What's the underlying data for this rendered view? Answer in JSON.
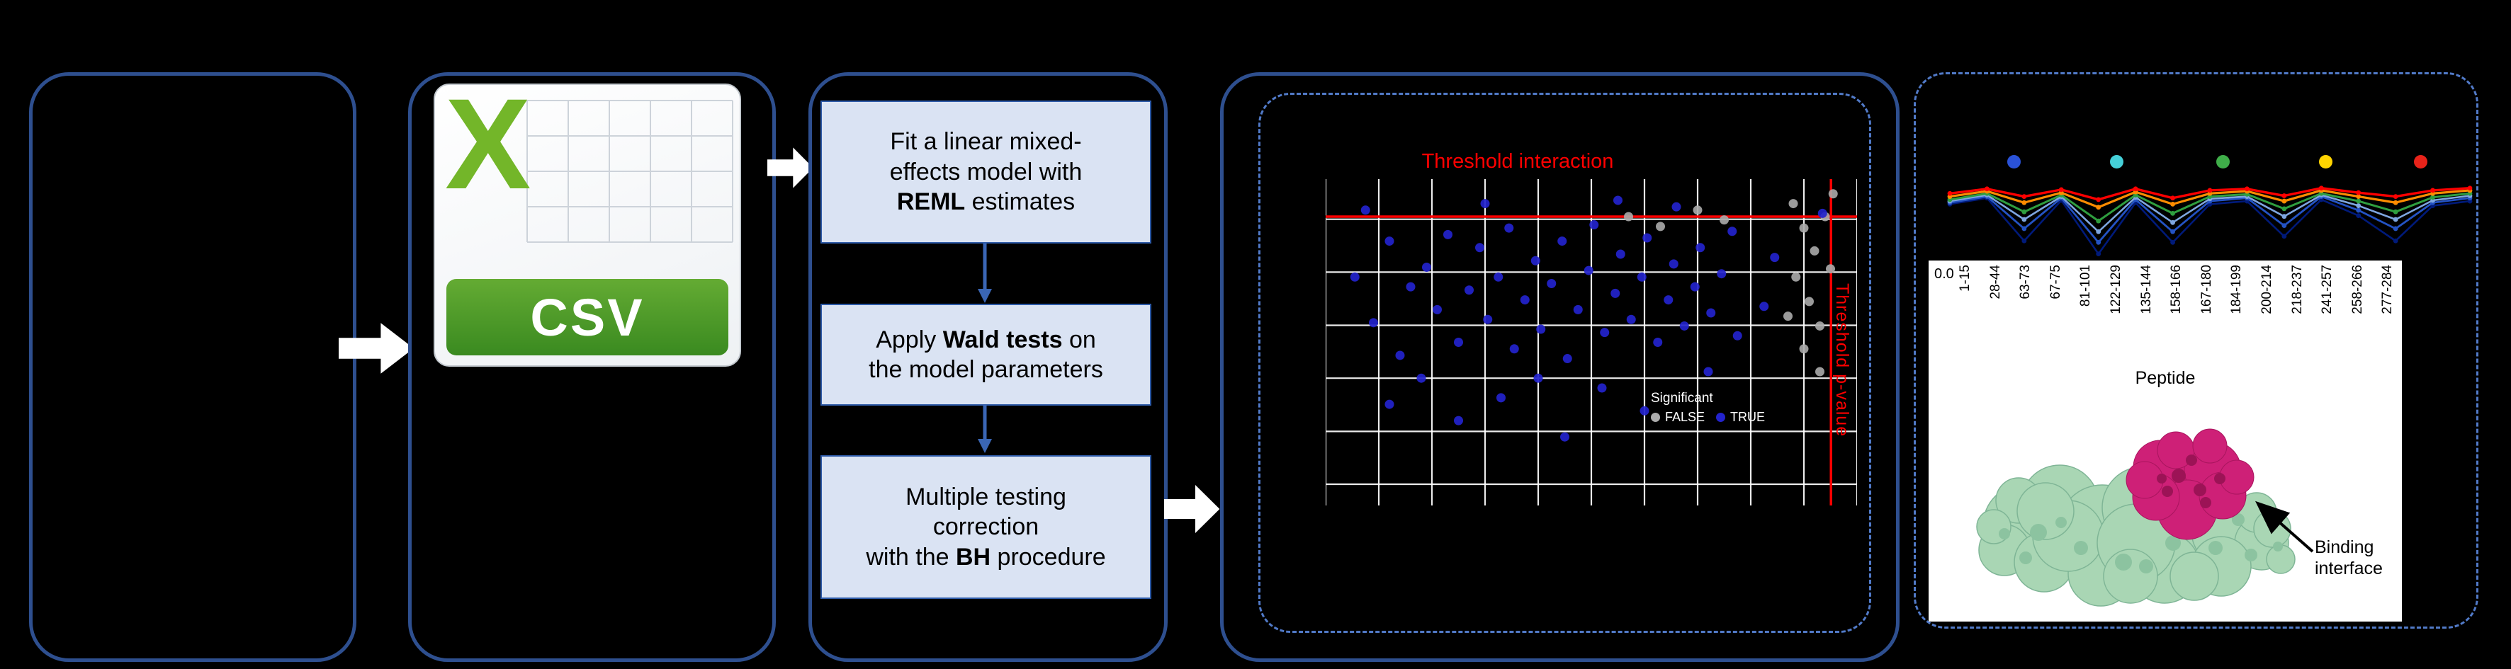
{
  "colors": {
    "background": "#000000",
    "box_border": "#2e4f8f",
    "dashed_border": "#517ac8",
    "step_fill": "#dae3f3",
    "step_border": "#2e5ba8",
    "flow_arrow": "#ffffff",
    "down_arrow": "#3a66b5",
    "threshold_red": "#ff0000",
    "csv_green": "#73b629",
    "csv_band_green": "#3a8a20",
    "protein_green": "#a9d6b4",
    "protein_magenta": "#ce2077"
  },
  "csv": {
    "logo_letter": "X",
    "file_type": "CSV"
  },
  "steps": [
    {
      "pre": "Fit a linear mixed-\neffects model with\n",
      "bold": "REML",
      "post": " estimates"
    },
    {
      "pre": "Apply ",
      "bold": "Wald tests",
      "post": " on\nthe model parameters"
    },
    {
      "pre": "Multiple testing\ncorrection\nwith the ",
      "bold": "BH",
      "post": " procedure"
    }
  ],
  "chart_data": [
    {
      "type": "scatter",
      "title": "Threshold interaction",
      "y_axis_label": "Threshold p-value",
      "legend": {
        "title": "Significant",
        "items": [
          {
            "label": "FALSE",
            "color": "#ababab"
          },
          {
            "label": "TRUE",
            "color": "#2323cd"
          }
        ]
      },
      "threshold_h": 0.115,
      "threshold_v": 0.951,
      "grid_v": [
        0,
        0.1,
        0.2,
        0.3,
        0.4,
        0.5,
        0.6,
        0.7,
        0.8,
        0.9,
        1.0
      ],
      "grid_h": [
        0.123,
        0.285,
        0.448,
        0.61,
        0.773,
        0.935
      ],
      "colors": {
        "blue": "#2323cd",
        "gray": "#ababab",
        "threshold": "#ff0000",
        "grid": "#ffffff"
      },
      "points": {
        "blue": [
          [
            0.055,
            0.3
          ],
          [
            0.09,
            0.44
          ],
          [
            0.12,
            0.19
          ],
          [
            0.14,
            0.54
          ],
          [
            0.16,
            0.33
          ],
          [
            0.19,
            0.27
          ],
          [
            0.21,
            0.4
          ],
          [
            0.23,
            0.17
          ],
          [
            0.25,
            0.5
          ],
          [
            0.27,
            0.34
          ],
          [
            0.29,
            0.21
          ],
          [
            0.305,
            0.43
          ],
          [
            0.325,
            0.3
          ],
          [
            0.345,
            0.15
          ],
          [
            0.355,
            0.52
          ],
          [
            0.375,
            0.37
          ],
          [
            0.395,
            0.25
          ],
          [
            0.405,
            0.46
          ],
          [
            0.425,
            0.32
          ],
          [
            0.445,
            0.19
          ],
          [
            0.455,
            0.55
          ],
          [
            0.475,
            0.4
          ],
          [
            0.495,
            0.28
          ],
          [
            0.505,
            0.14
          ],
          [
            0.525,
            0.47
          ],
          [
            0.545,
            0.35
          ],
          [
            0.555,
            0.23
          ],
          [
            0.575,
            0.43
          ],
          [
            0.595,
            0.3
          ],
          [
            0.605,
            0.18
          ],
          [
            0.625,
            0.5
          ],
          [
            0.645,
            0.37
          ],
          [
            0.655,
            0.26
          ],
          [
            0.675,
            0.45
          ],
          [
            0.695,
            0.33
          ],
          [
            0.705,
            0.21
          ],
          [
            0.725,
            0.41
          ],
          [
            0.745,
            0.29
          ],
          [
            0.765,
            0.16
          ],
          [
            0.775,
            0.48
          ],
          [
            0.25,
            0.74
          ],
          [
            0.33,
            0.67
          ],
          [
            0.45,
            0.79
          ],
          [
            0.12,
            0.69
          ],
          [
            0.52,
            0.64
          ],
          [
            0.6,
            0.71
          ],
          [
            0.075,
            0.095
          ],
          [
            0.3,
            0.075
          ],
          [
            0.55,
            0.065
          ],
          [
            0.66,
            0.085
          ],
          [
            0.72,
            0.59
          ],
          [
            0.18,
            0.61
          ],
          [
            0.4,
            0.61
          ],
          [
            0.845,
            0.24
          ],
          [
            0.825,
            0.39
          ],
          [
            0.935,
            0.105
          ]
        ],
        "gray": [
          [
            0.88,
            0.075
          ],
          [
            0.9,
            0.15
          ],
          [
            0.92,
            0.22
          ],
          [
            0.885,
            0.3
          ],
          [
            0.91,
            0.375
          ],
          [
            0.93,
            0.45
          ],
          [
            0.9,
            0.52
          ],
          [
            0.94,
            0.115
          ],
          [
            0.95,
            0.275
          ],
          [
            0.87,
            0.42
          ],
          [
            0.57,
            0.115
          ],
          [
            0.63,
            0.145
          ],
          [
            0.7,
            0.095
          ],
          [
            0.75,
            0.125
          ],
          [
            0.93,
            0.59
          ],
          [
            0.955,
            0.045
          ]
        ]
      }
    },
    {
      "type": "line",
      "y_tick": "0.0",
      "x_label": "Peptide",
      "x_ticks": [
        "1-15",
        "28-44",
        "63-73",
        "67-75",
        "81-101",
        "122-129",
        "135-144",
        "158-166",
        "167-180",
        "184-199",
        "200-214",
        "218-237",
        "241-257",
        "258-266",
        "277-284"
      ],
      "top_dots": [
        {
          "x": 0.13,
          "color": "#2a52d8"
        },
        {
          "x": 0.325,
          "color": "#45d0d8"
        },
        {
          "x": 0.525,
          "color": "#3fae49"
        },
        {
          "x": 0.72,
          "color": "#ffd400"
        },
        {
          "x": 0.9,
          "color": "#e8231a"
        }
      ],
      "series": [
        {
          "color": "#001a7a",
          "width": 2.6,
          "values": [
            0.3,
            0.22,
            0.78,
            0.25,
            0.95,
            0.28,
            0.8,
            0.3,
            0.26,
            0.72,
            0.24,
            0.45,
            0.78,
            0.32,
            0.26
          ]
        },
        {
          "color": "#2453c4",
          "width": 2.8,
          "values": [
            0.28,
            0.2,
            0.62,
            0.22,
            0.8,
            0.24,
            0.66,
            0.26,
            0.22,
            0.58,
            0.2,
            0.38,
            0.62,
            0.28,
            0.22
          ]
        },
        {
          "color": "#7ea6e0",
          "width": 2.6,
          "values": [
            0.26,
            0.18,
            0.5,
            0.2,
            0.66,
            0.21,
            0.54,
            0.23,
            0.2,
            0.46,
            0.18,
            0.32,
            0.5,
            0.25,
            0.19
          ]
        },
        {
          "color": "#2f9e3f",
          "width": 3.0,
          "values": [
            0.24,
            0.16,
            0.4,
            0.18,
            0.52,
            0.18,
            0.42,
            0.2,
            0.17,
            0.36,
            0.16,
            0.26,
            0.4,
            0.21,
            0.16
          ]
        },
        {
          "color": "#ff8c00",
          "width": 3.2,
          "values": [
            0.2,
            0.13,
            0.28,
            0.15,
            0.34,
            0.14,
            0.3,
            0.16,
            0.13,
            0.26,
            0.12,
            0.2,
            0.28,
            0.16,
            0.12
          ]
        },
        {
          "color": "#ff0000",
          "width": 3.4,
          "values": [
            0.16,
            0.1,
            0.2,
            0.11,
            0.24,
            0.1,
            0.22,
            0.12,
            0.1,
            0.19,
            0.09,
            0.15,
            0.2,
            0.12,
            0.09
          ]
        }
      ]
    }
  ],
  "protein": {
    "annotation": "Binding interface"
  }
}
